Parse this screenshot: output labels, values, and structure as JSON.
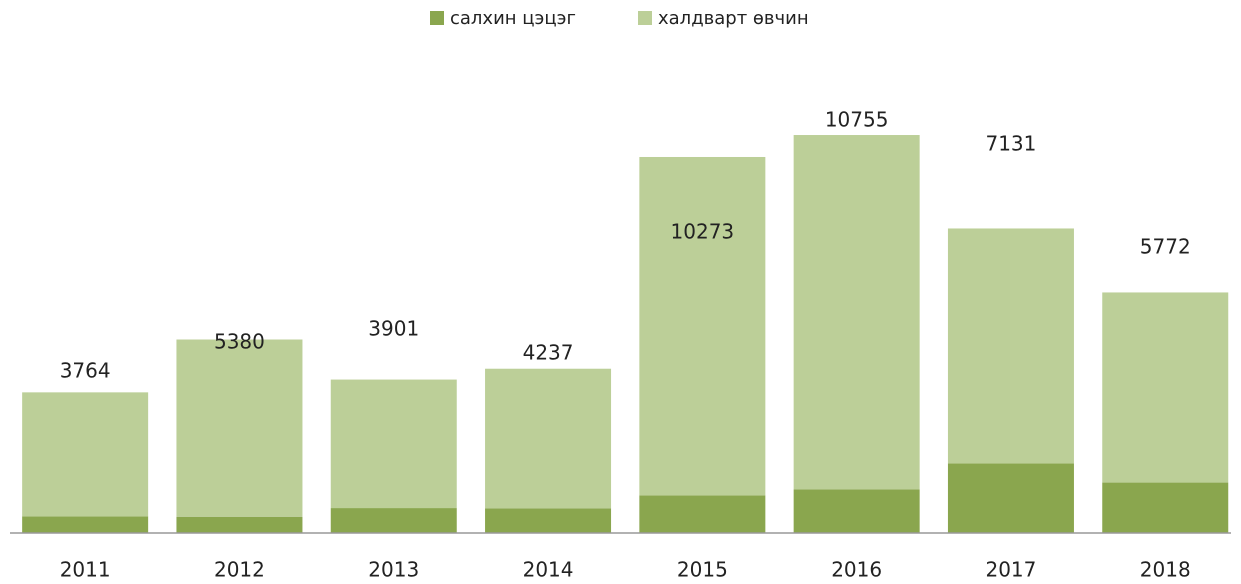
{
  "chart_data": {
    "type": "stacked_bar",
    "categories": [
      "2011",
      "2012",
      "2013",
      "2014",
      "2015",
      "2016",
      "2017",
      "2018"
    ],
    "series": [
      {
        "name": "салхин цэцэг",
        "color": "#8aa64e",
        "values": [
          506,
          494,
          757,
          750,
          1142,
          1327,
          2114,
          1531
        ]
      },
      {
        "name": "халдварт өвчин",
        "color": "#bccf98",
        "values": [
          3764,
          5380,
          3901,
          4237,
          10273,
          10755,
          7131,
          5772
        ]
      }
    ],
    "legend": "top"
  }
}
